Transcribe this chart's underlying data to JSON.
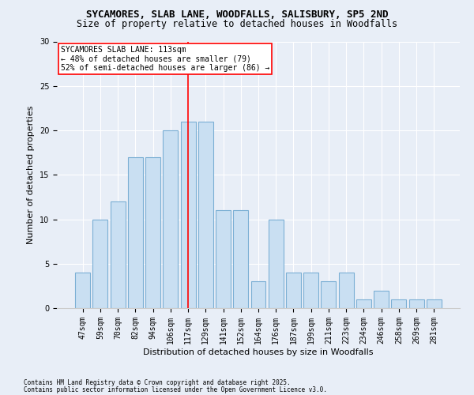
{
  "title1": "SYCAMORES, SLAB LANE, WOODFALLS, SALISBURY, SP5 2ND",
  "title2": "Size of property relative to detached houses in Woodfalls",
  "xlabel": "Distribution of detached houses by size in Woodfalls",
  "ylabel": "Number of detached properties",
  "categories": [
    "47sqm",
    "59sqm",
    "70sqm",
    "82sqm",
    "94sqm",
    "106sqm",
    "117sqm",
    "129sqm",
    "141sqm",
    "152sqm",
    "164sqm",
    "176sqm",
    "187sqm",
    "199sqm",
    "211sqm",
    "223sqm",
    "234sqm",
    "246sqm",
    "258sqm",
    "269sqm",
    "281sqm"
  ],
  "values": [
    4,
    10,
    12,
    17,
    17,
    20,
    21,
    21,
    11,
    11,
    3,
    10,
    4,
    4,
    3,
    4,
    1,
    2,
    1,
    1,
    1
  ],
  "bar_color": "#c9dff2",
  "bar_edge_color": "#7bafd4",
  "vline_x_index": 6,
  "vline_color": "red",
  "annotation_text": "SYCAMORES SLAB LANE: 113sqm\n← 48% of detached houses are smaller (79)\n52% of semi-detached houses are larger (86) →",
  "annotation_box_color": "white",
  "annotation_box_edge": "red",
  "ylim": [
    0,
    30
  ],
  "yticks": [
    0,
    5,
    10,
    15,
    20,
    25,
    30
  ],
  "footer1": "Contains HM Land Registry data © Crown copyright and database right 2025.",
  "footer2": "Contains public sector information licensed under the Open Government Licence v3.0.",
  "bg_color": "#e8eef7",
  "plot_bg_color": "#e8eef7",
  "title_fontsize": 9,
  "subtitle_fontsize": 8.5,
  "axis_label_fontsize": 8,
  "tick_fontsize": 7,
  "annotation_fontsize": 7,
  "footer_fontsize": 5.5
}
